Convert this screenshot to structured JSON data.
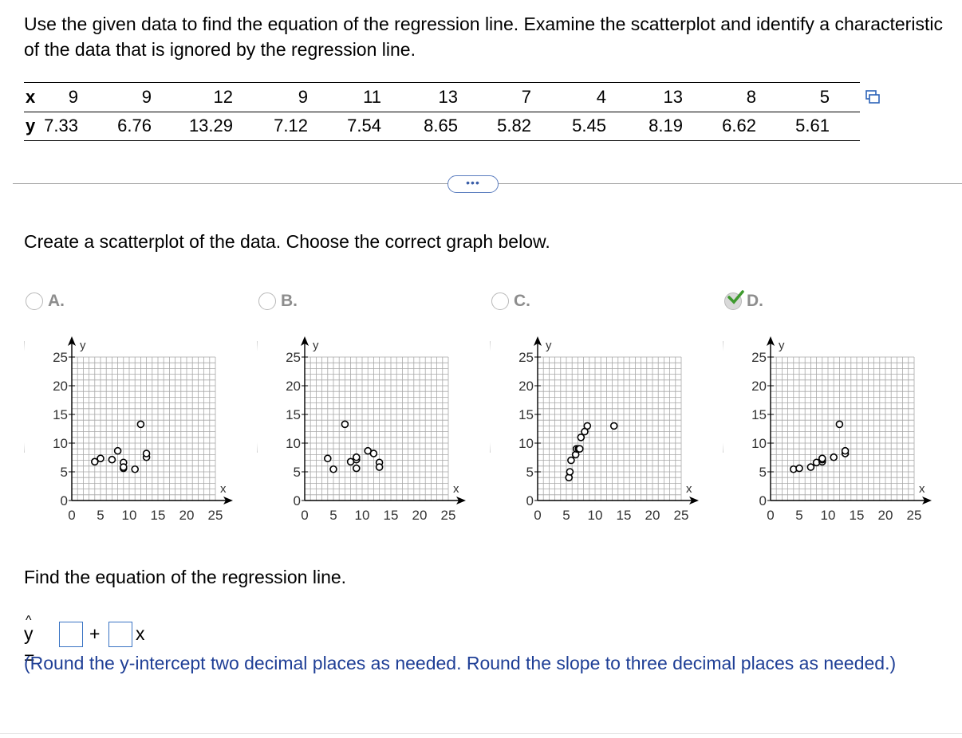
{
  "question": "Use the given data to find the equation of the regression line. Examine the scatterplot and identify a characteristic of the data that is ignored by the regression line.",
  "table": {
    "x_label": "x",
    "y_label": "y",
    "x": [
      "9",
      "9",
      "12",
      "9",
      "11",
      "13",
      "7",
      "4",
      "13",
      "8",
      "5"
    ],
    "y": [
      "7.33",
      "6.76",
      "13.29",
      "7.12",
      "7.54",
      "8.65",
      "5.82",
      "5.45",
      "8.19",
      "6.62",
      "5.61"
    ]
  },
  "more_button": "•••",
  "instruction": "Create a scatterplot of the data. Choose the correct graph below.",
  "choices": [
    {
      "letter": "A.",
      "selected": false
    },
    {
      "letter": "B.",
      "selected": false
    },
    {
      "letter": "C.",
      "selected": false
    },
    {
      "letter": "D.",
      "selected": true
    }
  ],
  "graph_axes": {
    "x_label": "x",
    "y_label": "y",
    "x_ticks": [
      "0",
      "5",
      "10",
      "15",
      "20",
      "25"
    ],
    "y_ticks": [
      "0",
      "5",
      "10",
      "15",
      "20",
      "25"
    ],
    "range": [
      0,
      25
    ],
    "grid": true
  },
  "chart_data": [
    {
      "type": "scatter",
      "x": [
        4,
        5,
        7,
        8,
        9,
        9,
        9,
        11,
        12,
        13,
        13
      ],
      "y": [
        6.76,
        7.33,
        7.12,
        8.65,
        6.62,
        5.61,
        5.82,
        5.45,
        13.29,
        7.54,
        8.19
      ],
      "xlim": [
        0,
        25
      ],
      "ylim": [
        0,
        25
      ]
    },
    {
      "type": "scatter",
      "x": [
        4,
        5,
        7,
        8,
        9,
        9,
        9,
        11,
        12,
        13,
        13
      ],
      "y": [
        7.33,
        5.45,
        13.29,
        6.76,
        7.12,
        5.61,
        7.54,
        8.65,
        8.19,
        6.62,
        5.82
      ],
      "xlim": [
        0,
        25
      ],
      "ylim": [
        0,
        25
      ]
    },
    {
      "type": "scatter",
      "x": [
        5.45,
        5.61,
        5.82,
        6.62,
        6.76,
        7.12,
        7.33,
        7.54,
        8.19,
        8.65,
        13.29
      ],
      "y": [
        4,
        5,
        7,
        8,
        9,
        9,
        9,
        11,
        12,
        13,
        13
      ],
      "xlim": [
        0,
        25
      ],
      "ylim": [
        0,
        25
      ]
    },
    {
      "type": "scatter",
      "x": [
        4,
        5,
        7,
        8,
        9,
        9,
        9,
        11,
        12,
        13,
        13
      ],
      "y": [
        5.45,
        5.61,
        5.82,
        6.62,
        6.76,
        7.12,
        7.33,
        7.54,
        13.29,
        8.19,
        8.65
      ],
      "xlim": [
        0,
        25
      ],
      "ylim": [
        0,
        25
      ]
    }
  ],
  "find_text": "Find the equation of the regression line.",
  "equation": {
    "lhs": "y =",
    "plus": "+",
    "x": "x"
  },
  "note": "(Round the y-intercept two decimal places as needed. Round the slope to three decimal places as needed.)",
  "colors": {
    "accent": "#3a74c4",
    "note": "#1f3f96",
    "grid": "#a8a8a8",
    "check": "#3e9a2e"
  }
}
